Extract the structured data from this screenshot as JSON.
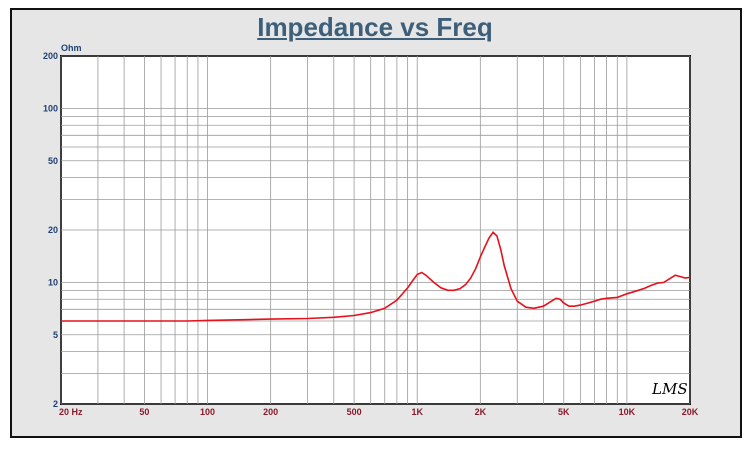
{
  "chart_data": {
    "type": "line",
    "title": "Impedance vs Freq",
    "xlabel": "",
    "ylabel": "",
    "y_unit": "Ohm",
    "x_scale": "log",
    "y_scale": "log",
    "xlim": [
      20,
      20000
    ],
    "ylim": [
      2,
      200
    ],
    "grid": true,
    "x_ticks": [
      {
        "value": 20,
        "label": "20  Hz"
      },
      {
        "value": 50,
        "label": "50"
      },
      {
        "value": 100,
        "label": "100"
      },
      {
        "value": 200,
        "label": "200"
      },
      {
        "value": 500,
        "label": "500"
      },
      {
        "value": 1000,
        "label": "1K"
      },
      {
        "value": 2000,
        "label": "2K"
      },
      {
        "value": 5000,
        "label": "5K"
      },
      {
        "value": 10000,
        "label": "10K"
      },
      {
        "value": 20000,
        "label": "20K"
      }
    ],
    "y_ticks": [
      {
        "value": 200,
        "label": "200"
      },
      {
        "value": 100,
        "label": "100"
      },
      {
        "value": 50,
        "label": "50"
      },
      {
        "value": 20,
        "label": "20"
      },
      {
        "value": 10,
        "label": "10"
      },
      {
        "value": 5,
        "label": "5"
      },
      {
        "value": 2,
        "label": "2"
      }
    ],
    "series": [
      {
        "color": "#e8101a",
        "x": [
          20,
          30,
          50,
          80,
          100,
          150,
          200,
          300,
          400,
          500,
          600,
          700,
          800,
          900,
          950,
          1000,
          1050,
          1100,
          1200,
          1300,
          1400,
          1500,
          1600,
          1700,
          1800,
          1900,
          2000,
          2100,
          2200,
          2300,
          2400,
          2500,
          2600,
          2800,
          3000,
          3300,
          3600,
          4000,
          4300,
          4600,
          4800,
          5000,
          5300,
          5600,
          6000,
          6500,
          7000,
          7500,
          8000,
          9000,
          10000,
          11000,
          12000,
          13000,
          14000,
          15000,
          16000,
          17000,
          18000,
          19000,
          20000
        ],
        "y": [
          6.0,
          6.0,
          6.0,
          6.0,
          6.05,
          6.1,
          6.15,
          6.2,
          6.3,
          6.45,
          6.7,
          7.1,
          7.9,
          9.3,
          10.2,
          11.1,
          11.4,
          11.0,
          10.0,
          9.3,
          9.0,
          9.0,
          9.2,
          9.7,
          10.6,
          12.0,
          14.0,
          16.0,
          18.0,
          19.4,
          18.5,
          15.5,
          12.5,
          9.2,
          7.8,
          7.2,
          7.1,
          7.3,
          7.7,
          8.1,
          8.0,
          7.6,
          7.3,
          7.3,
          7.4,
          7.6,
          7.8,
          8.0,
          8.1,
          8.2,
          8.6,
          8.9,
          9.2,
          9.6,
          9.9,
          10.0,
          10.5,
          11.0,
          10.8,
          10.6,
          10.7
        ]
      }
    ],
    "logo_text": "LMS"
  }
}
